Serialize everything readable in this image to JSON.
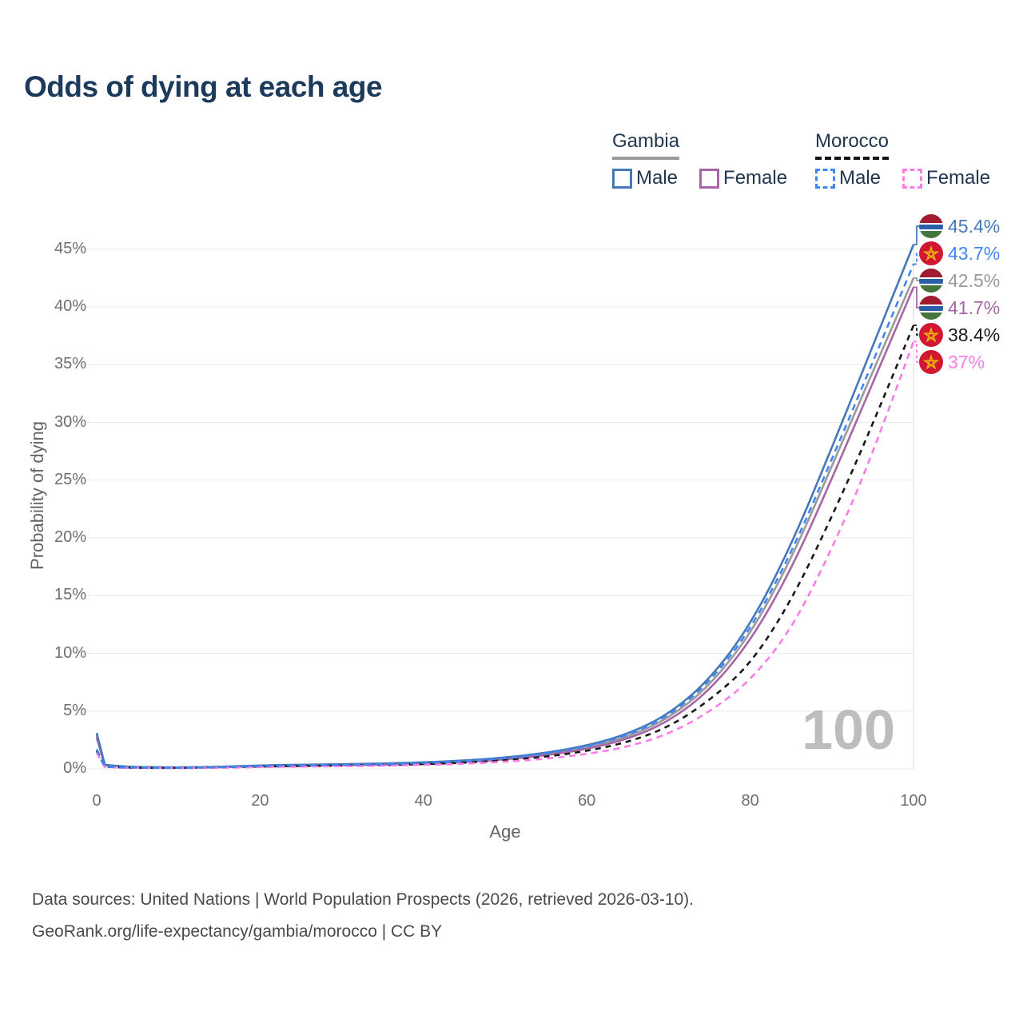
{
  "title": "Odds of dying at each age",
  "legend": {
    "gambia": {
      "name": "Gambia",
      "male": "Male",
      "female": "Female"
    },
    "morocco": {
      "name": "Morocco",
      "male": "Male",
      "female": "Female"
    }
  },
  "footer": {
    "line1": "Data sources: United Nations | World Population Prospects (2026, retrieved 2026-03-10).",
    "line2": "GeoRank.org/life-expectancy/gambia/morocco | CC BY"
  },
  "chart_data": {
    "type": "line",
    "title": "Odds of dying at each age",
    "xlabel": "Age",
    "ylabel": "Probability of dying",
    "x_ticks": [
      0,
      20,
      40,
      60,
      80,
      100
    ],
    "y_ticks_pct": [
      0,
      5,
      10,
      15,
      20,
      25,
      30,
      35,
      40,
      45
    ],
    "y_tick_suffix": "%",
    "xlim": [
      0,
      100
    ],
    "ylim_pct": [
      0,
      47
    ],
    "grid": "horizontal",
    "legend_position": "top-right",
    "hover_age_label": "100",
    "hover_age": 100,
    "ages": [
      0,
      1,
      3,
      5,
      10,
      15,
      20,
      25,
      30,
      35,
      40,
      45,
      50,
      55,
      60,
      65,
      70,
      75,
      80,
      85,
      90,
      95,
      100
    ],
    "series": [
      {
        "id": "gambia-male",
        "name": "Gambia Male",
        "color": "#4678b8",
        "style": "solid",
        "flag": "gambia",
        "end_label": "45.4%",
        "end_value": 45.4,
        "values": [
          3.1,
          0.35,
          0.22,
          0.16,
          0.12,
          0.17,
          0.3,
          0.36,
          0.4,
          0.46,
          0.56,
          0.72,
          0.97,
          1.38,
          2.0,
          3.0,
          4.7,
          7.7,
          12.4,
          19.3,
          27.8,
          36.6,
          45.4
        ]
      },
      {
        "id": "morocco-male",
        "name": "Morocco Male",
        "color": "#4285f4",
        "style": "dashed",
        "flag": "morocco",
        "end_label": "43.7%",
        "end_value": 43.7,
        "values": [
          1.7,
          0.2,
          0.13,
          0.1,
          0.08,
          0.13,
          0.25,
          0.31,
          0.35,
          0.41,
          0.51,
          0.66,
          0.91,
          1.31,
          1.92,
          2.9,
          4.55,
          7.45,
          12.0,
          18.6,
          26.8,
          35.2,
          43.7
        ]
      },
      {
        "id": "gambia-total",
        "name": "Gambia",
        "color": "#9a9a9a",
        "style": "solid",
        "flag": "gambia",
        "end_label": "42.5%",
        "end_value": 42.5,
        "values": [
          2.9,
          0.32,
          0.2,
          0.15,
          0.11,
          0.15,
          0.26,
          0.31,
          0.35,
          0.41,
          0.5,
          0.65,
          0.89,
          1.27,
          1.84,
          2.76,
          4.35,
          7.15,
          11.6,
          18.1,
          26.2,
          34.4,
          42.5
        ]
      },
      {
        "id": "gambia-female",
        "name": "Gambia Female",
        "color": "#a765a7",
        "style": "solid",
        "flag": "gambia",
        "end_label": "41.7%",
        "end_value": 41.7,
        "values": [
          2.7,
          0.3,
          0.19,
          0.14,
          0.1,
          0.13,
          0.22,
          0.26,
          0.3,
          0.36,
          0.45,
          0.58,
          0.81,
          1.17,
          1.7,
          2.57,
          4.08,
          6.75,
          11.0,
          17.2,
          25.1,
          33.4,
          41.7
        ]
      },
      {
        "id": "morocco-total",
        "name": "Morocco",
        "color": "#1a1a1a",
        "style": "dashed",
        "flag": "morocco",
        "end_label": "38.4%",
        "end_value": 38.4,
        "values": [
          1.55,
          0.18,
          0.12,
          0.09,
          0.07,
          0.11,
          0.2,
          0.24,
          0.28,
          0.33,
          0.41,
          0.53,
          0.73,
          1.05,
          1.53,
          2.3,
          3.6,
          5.9,
          9.0,
          14.5,
          21.8,
          29.8,
          38.4
        ]
      },
      {
        "id": "morocco-female",
        "name": "Morocco Female",
        "color": "#fb7ce8",
        "style": "dashed",
        "flag": "morocco",
        "end_label": "37%",
        "end_value": 37.0,
        "values": [
          1.4,
          0.16,
          0.1,
          0.08,
          0.06,
          0.09,
          0.16,
          0.19,
          0.22,
          0.27,
          0.34,
          0.44,
          0.61,
          0.87,
          1.27,
          1.9,
          3.0,
          4.9,
          7.6,
          12.0,
          19.0,
          27.2,
          37.0
        ]
      }
    ],
    "flag_colors": {
      "gambia": {
        "red": "#a11c30",
        "blue": "#2a5fa9",
        "green": "#44763c",
        "white": "#ffffff"
      },
      "morocco": {
        "red": "#d21733",
        "star": "#edb40e"
      }
    },
    "grid_color": "#e9e9e9",
    "crosshair_color": "#e3e3e3"
  }
}
